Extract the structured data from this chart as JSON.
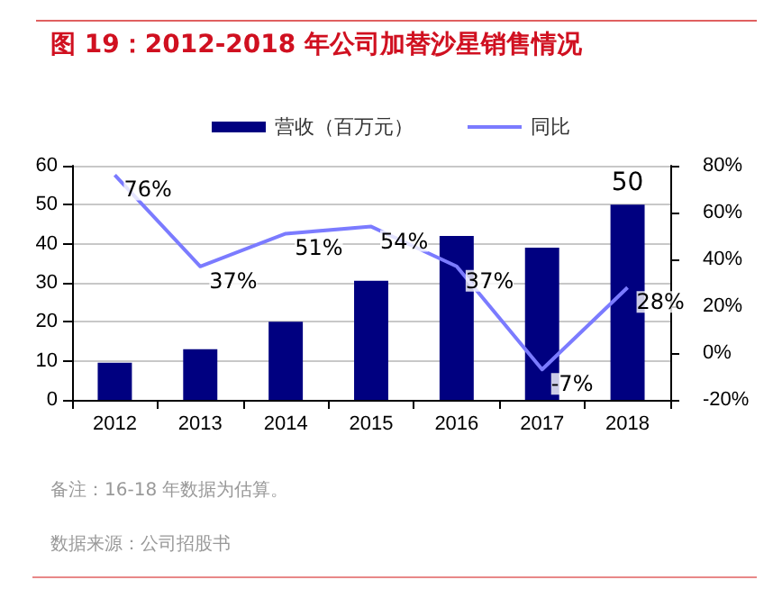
{
  "chart_data": {
    "type": "bar",
    "title": "图 19：2012-2018 年公司加替沙星销售情况",
    "categories": [
      "2012",
      "2013",
      "2014",
      "2015",
      "2016",
      "2017",
      "2018"
    ],
    "series": [
      {
        "name": "营收（百万元）",
        "color": "#000080",
        "values": [
          9.5,
          13,
          20,
          30.5,
          42,
          39,
          50
        ],
        "value_labels": [
          null,
          null,
          null,
          null,
          null,
          null,
          "50"
        ]
      },
      {
        "name": "同比",
        "type": "line",
        "axis": "y2",
        "color": "#7b7bff",
        "values": [
          76,
          37,
          51,
          54,
          37,
          -7,
          28
        ],
        "value_labels": [
          "76%",
          "37%",
          "51%",
          "54%",
          "37%",
          "-7%",
          "28%"
        ]
      }
    ],
    "ylim": [
      0,
      60
    ],
    "yticks": [
      0,
      10,
      20,
      30,
      40,
      50,
      60
    ],
    "y2lim": [
      -20,
      80
    ],
    "y2ticks": [
      {
        "value": -20,
        "label": "-20%"
      },
      {
        "value": 0,
        "label": "0%"
      },
      {
        "value": 20,
        "label": "20%"
      },
      {
        "value": 40,
        "label": "40%"
      },
      {
        "value": 60,
        "label": "60%"
      },
      {
        "value": 80,
        "label": "80%"
      }
    ],
    "grid": "y",
    "legend": "top",
    "marker": "none",
    "annotations": [
      "备注：16-18 年数据为估算。",
      "数据来源：公司招股书"
    ]
  }
}
